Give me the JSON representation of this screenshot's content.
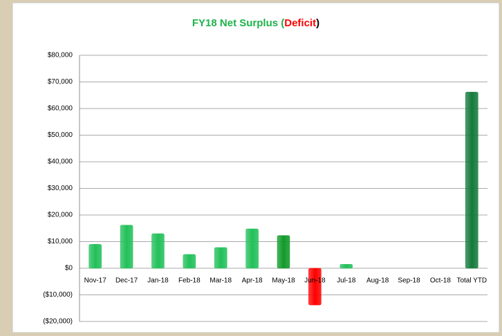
{
  "chart_data": {
    "type": "bar",
    "title_segments": [
      {
        "text": "FY18 Net Surplus (",
        "color": "#1db34a"
      },
      {
        "text": "Deficit",
        "color": "#ff0000"
      },
      {
        "text": ")",
        "color": "#000000"
      }
    ],
    "categories": [
      "Nov-17",
      "Dec-17",
      "Jan-18",
      "Feb-18",
      "Mar-18",
      "Apr-18",
      "May-18",
      "Jun-18",
      "Jul-18",
      "Aug-18",
      "Sep-18",
      "Oct-18",
      "Total YTD"
    ],
    "values": [
      9000,
      16200,
      13000,
      5200,
      7800,
      14800,
      12300,
      -13800,
      1500,
      null,
      null,
      null,
      66200
    ],
    "colors": [
      "#22c05a",
      "#22c05a",
      "#22c05a",
      "#22c05a",
      "#22c05a",
      "#22c05a",
      "#119a2a",
      "#ff0000",
      "#22c05a",
      "#22c05a",
      "#22c05a",
      "#22c05a",
      "#137a3a"
    ],
    "ylim": [
      -20000,
      80000
    ],
    "yticks": [
      {
        "value": -20000,
        "label": "($20,000)"
      },
      {
        "value": -10000,
        "label": "($10,000)"
      },
      {
        "value": 0,
        "label": "$0"
      },
      {
        "value": 10000,
        "label": "$10,000"
      },
      {
        "value": 20000,
        "label": "$20,000"
      },
      {
        "value": 30000,
        "label": "$30,000"
      },
      {
        "value": 40000,
        "label": "$40,000"
      },
      {
        "value": 50000,
        "label": "$50,000"
      },
      {
        "value": 60000,
        "label": "$60,000"
      },
      {
        "value": 70000,
        "label": "$70,000"
      },
      {
        "value": 80000,
        "label": "$80,000"
      }
    ],
    "negative_tick_color": "#ff0000",
    "grid": true
  }
}
